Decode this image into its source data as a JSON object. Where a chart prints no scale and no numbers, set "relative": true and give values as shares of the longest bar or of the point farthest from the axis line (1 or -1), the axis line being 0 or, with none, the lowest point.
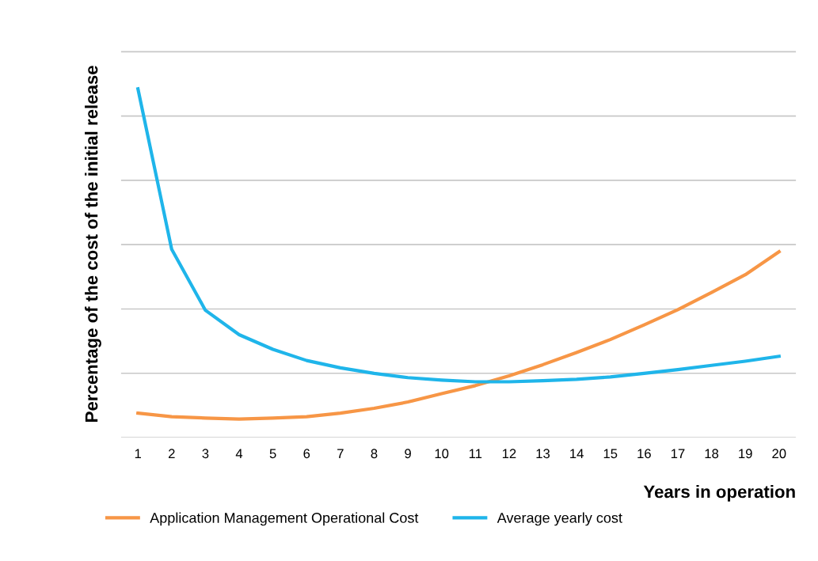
{
  "chart_data": {
    "type": "line",
    "relative": true,
    "xlabel": "Years in operation",
    "ylabel": "Percentage of the cost of the initial release",
    "categories": [
      "1",
      "2",
      "3",
      "4",
      "5",
      "6",
      "7",
      "8",
      "9",
      "10",
      "11",
      "12",
      "13",
      "14",
      "15",
      "16",
      "17",
      "18",
      "19",
      "20"
    ],
    "series": [
      {
        "name": "Application Management Operational Cost",
        "color": "#f79646",
        "values": [
          0.07,
          0.06,
          0.056,
          0.053,
          0.056,
          0.06,
          0.07,
          0.084,
          0.102,
          0.126,
          0.149,
          0.177,
          0.209,
          0.244,
          0.281,
          0.323,
          0.367,
          0.416,
          0.467,
          0.533
        ]
      },
      {
        "name": "Average yearly cost",
        "color": "#1fb5ea",
        "values": [
          1.0,
          0.54,
          0.365,
          0.295,
          0.253,
          0.221,
          0.2,
          0.184,
          0.172,
          0.165,
          0.16,
          0.16,
          0.163,
          0.167,
          0.174,
          0.184,
          0.195,
          0.207,
          0.219,
          0.233
        ]
      }
    ],
    "grid": "y",
    "legend": "bottom",
    "marker": "none",
    "line_style": "solid"
  }
}
